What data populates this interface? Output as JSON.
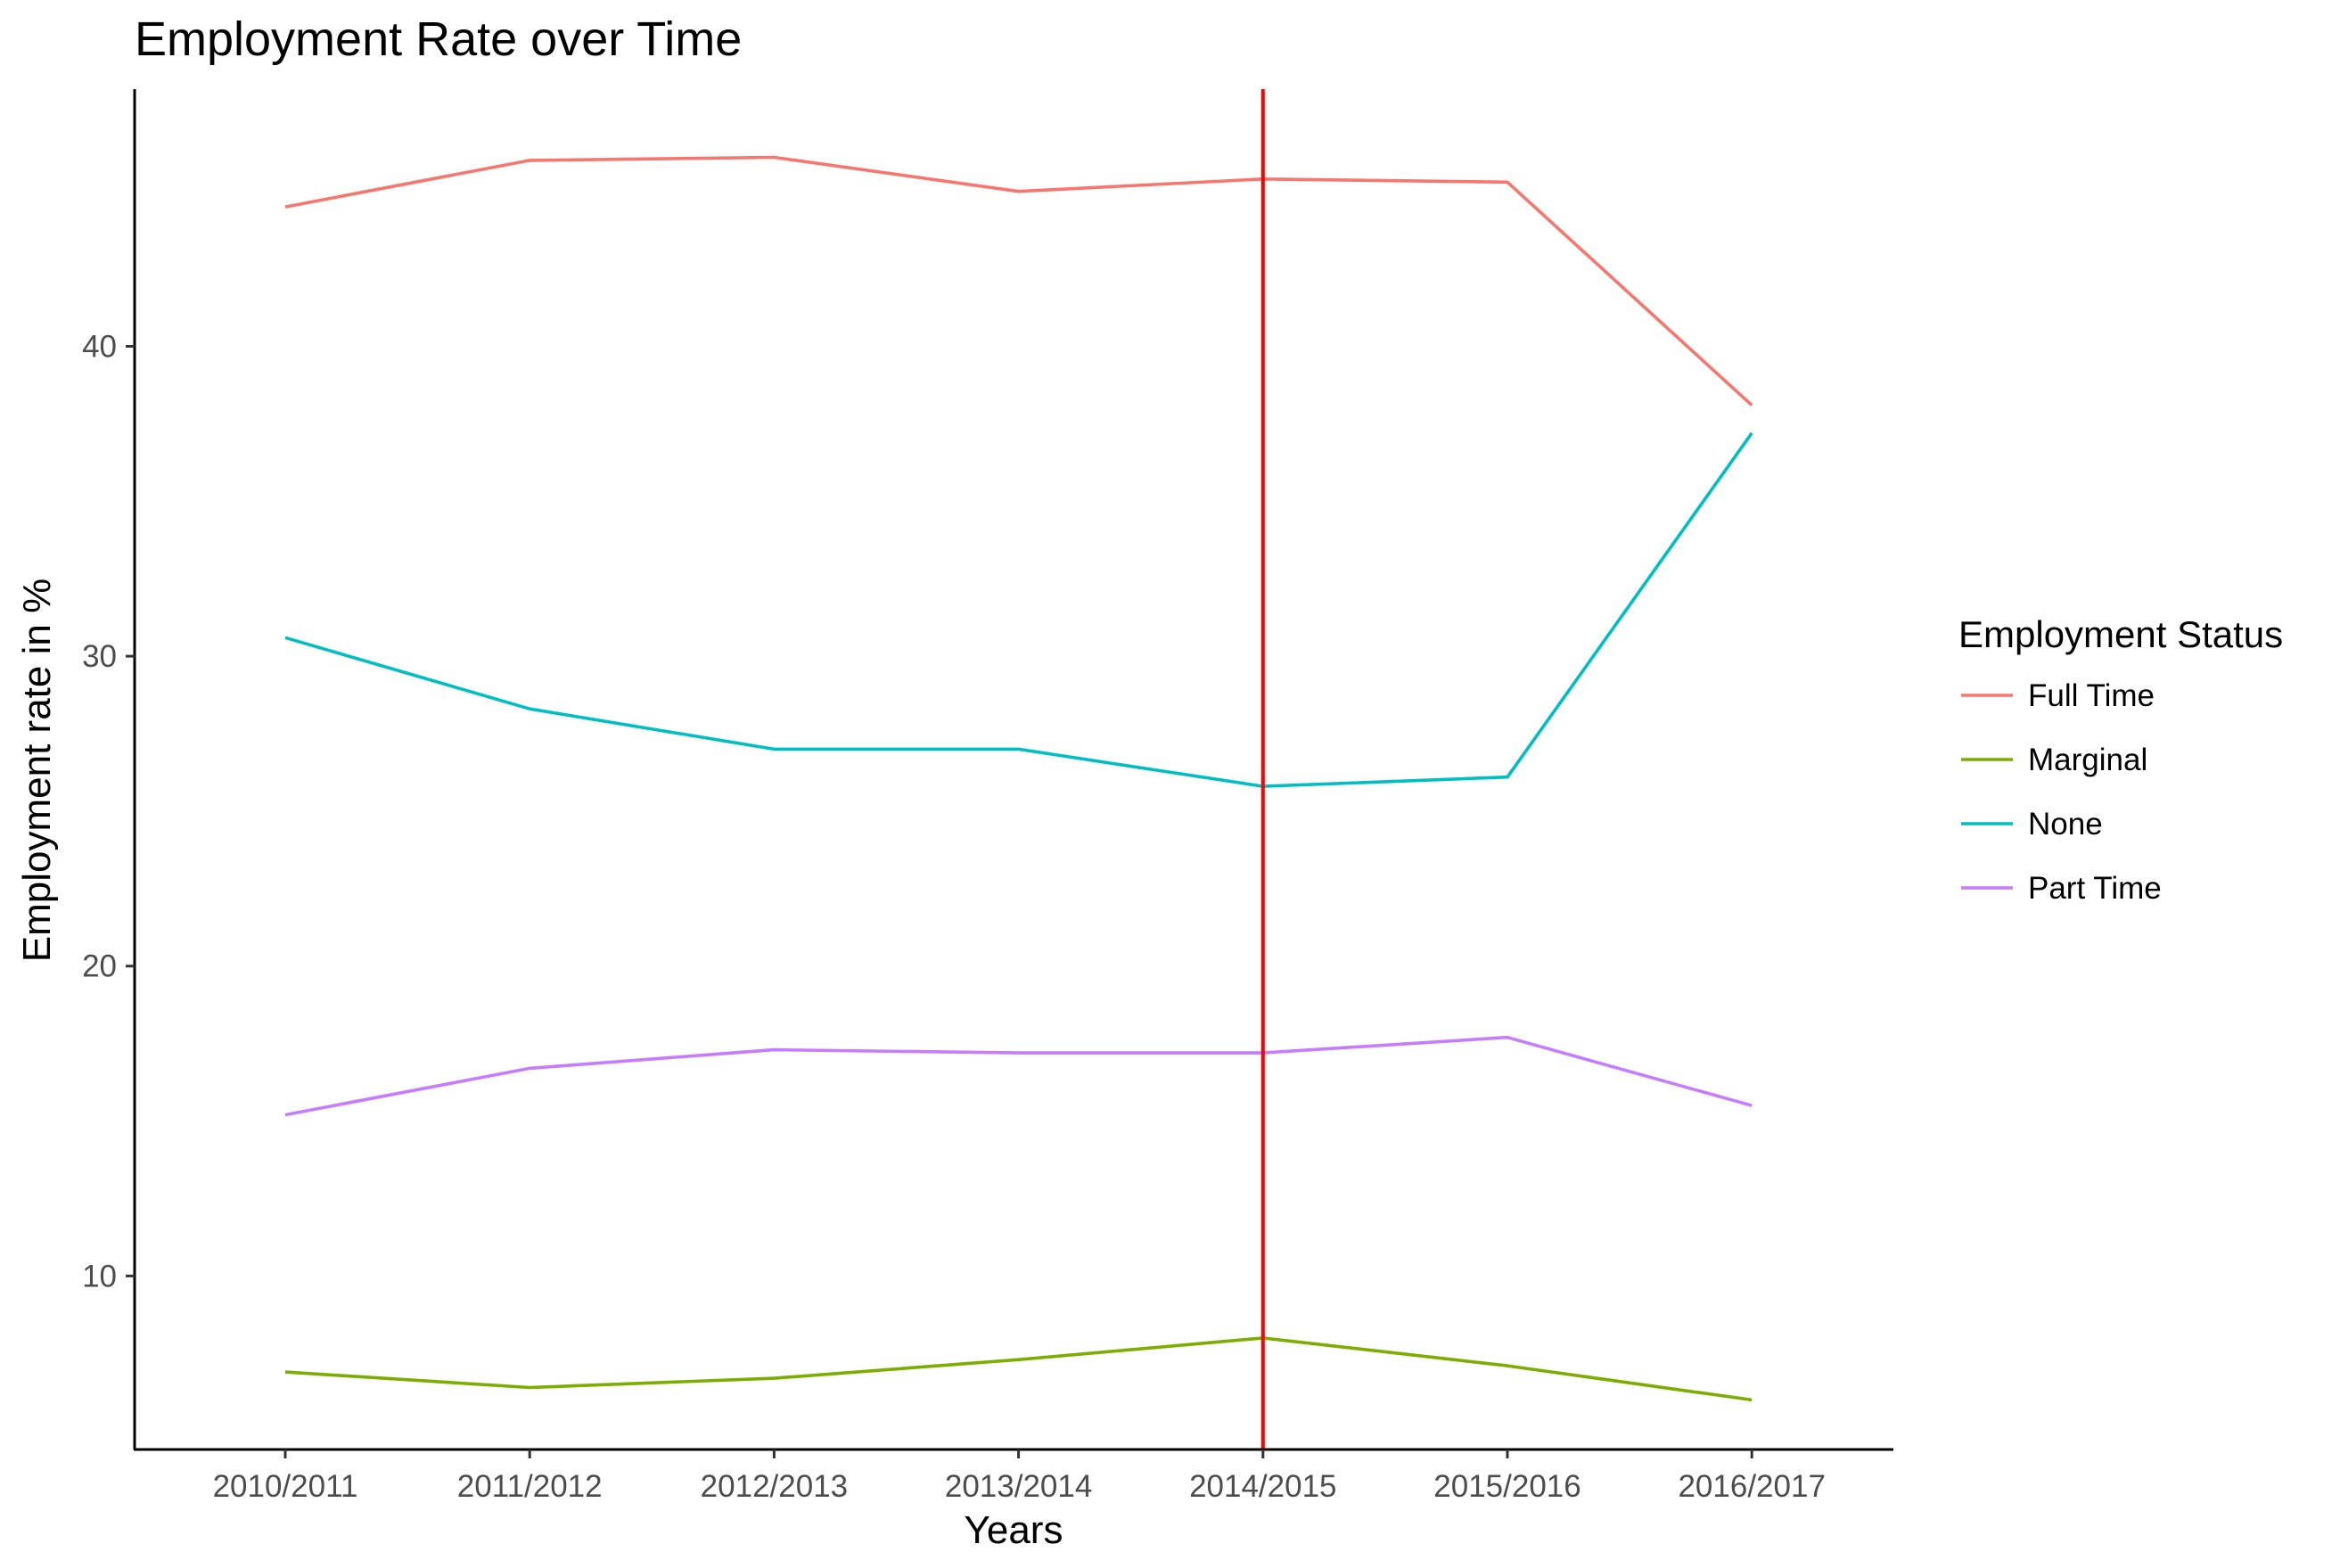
{
  "chart_data": {
    "type": "line",
    "title": "Employment Rate over Time",
    "xlabel": "Years",
    "ylabel": "Employment rate in %",
    "categories": [
      "2010/2011",
      "2011/2012",
      "2012/2013",
      "2013/2014",
      "2014/2015",
      "2015/2016",
      "2016/2017"
    ],
    "ylim": [
      4.4,
      48.3
    ],
    "yticks": [
      10,
      20,
      30,
      40
    ],
    "grid": false,
    "legend": {
      "title": "Employment Status",
      "position": "right"
    },
    "reference_line": {
      "x": "2014/2015",
      "color": "#ff0000"
    },
    "series": [
      {
        "name": "Full Time",
        "color": "#f8766d",
        "values": [
          44.5,
          46.0,
          46.1,
          45.0,
          45.4,
          45.3,
          38.1
        ]
      },
      {
        "name": "Marginal",
        "color": "#7cae00",
        "values": [
          6.9,
          6.4,
          6.7,
          7.3,
          8.0,
          7.1,
          6.0
        ]
      },
      {
        "name": "None",
        "color": "#00bfc4",
        "values": [
          30.6,
          28.3,
          27.0,
          27.0,
          25.8,
          26.1,
          37.2
        ]
      },
      {
        "name": "Part Time",
        "color": "#c77cff",
        "values": [
          15.2,
          16.7,
          17.3,
          17.2,
          17.2,
          17.7,
          15.5
        ]
      }
    ]
  }
}
